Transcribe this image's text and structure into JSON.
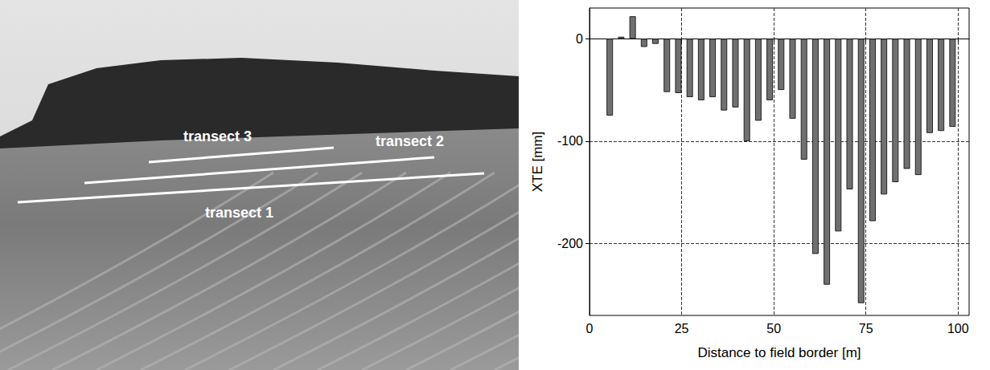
{
  "chart_data": {
    "type": "bar",
    "x": [
      5.5,
      8.6,
      11.7,
      14.8,
      17.9,
      21,
      24.1,
      27.2,
      30.3,
      33.4,
      36.5,
      39.6,
      42.7,
      45.8,
      48.9,
      52,
      55.1,
      58.2,
      61.3,
      64.4,
      67.5,
      70.6,
      73.7,
      76.8,
      79.9,
      83,
      86.1,
      89.2,
      92.3,
      95.4,
      98.5
    ],
    "values": [
      -75,
      2,
      22,
      -8,
      -5,
      -52,
      -53,
      -57,
      -60,
      -57,
      -70,
      -67,
      -100,
      -80,
      -60,
      -50,
      -78,
      -118,
      -210,
      -240,
      -188,
      -147,
      -258,
      -178,
      -152,
      -140,
      -127,
      -133,
      -92,
      -90,
      -86
    ],
    "color": "#707070",
    "xlabel": "Distance to field border [m]",
    "ylabel": "XTE [mm]",
    "xlim": [
      0,
      103
    ],
    "xticks": [
      0,
      25,
      50,
      75,
      100
    ],
    "ylim": [
      -270,
      30
    ],
    "yticks": [
      -200,
      -100,
      0
    ],
    "grid": true
  },
  "photo": {
    "labels": [
      "transect 3",
      "transect 2",
      "transect 1"
    ]
  }
}
